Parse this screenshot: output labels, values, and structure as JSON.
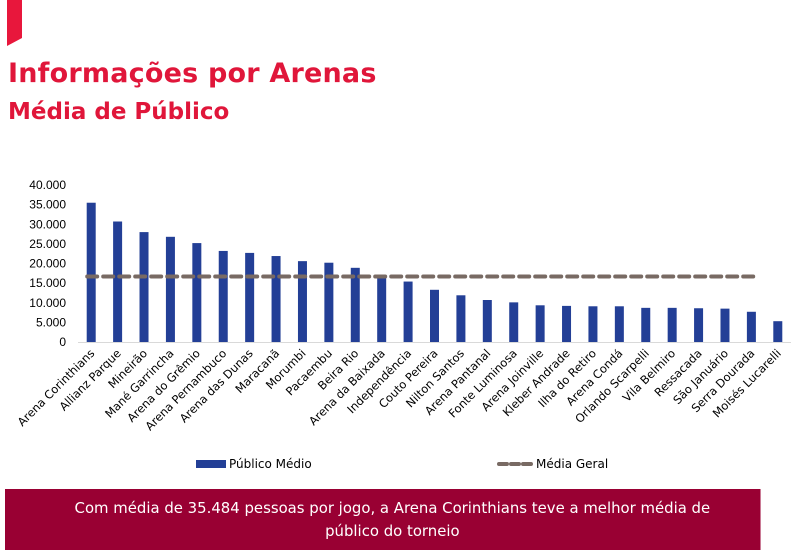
{
  "header": {
    "title": "Informações por Arenas",
    "subtitle": "Média de Público"
  },
  "colors": {
    "accent": "#e8173c",
    "title": "#e0163a",
    "bar": "#233f96",
    "mean_line": "#786a63",
    "banner": "#990033"
  },
  "chart_data": {
    "type": "bar",
    "title": "",
    "xlabel": "",
    "ylabel": "",
    "ylim": [
      0,
      40000
    ],
    "yticks": [
      0,
      5000,
      10000,
      15000,
      20000,
      25000,
      30000,
      35000,
      40000
    ],
    "ytick_labels": [
      "0",
      "5.000",
      "10.000",
      "15.000",
      "20.000",
      "25.000",
      "30.000",
      "35.000",
      "40.000"
    ],
    "grid": false,
    "legend_position": "bottom",
    "categories": [
      "Arena Corinthians",
      "Allianz Parque",
      "Mineirão",
      "Mané Garrincha",
      "Arena do Grêmio",
      "Arena Pernambuco",
      "Arena das Dunas",
      "Maracanã",
      "Morumbi",
      "Pacaembu",
      "Beira Rio",
      "Arena da Baixada",
      "Independência",
      "Couto Pereira",
      "Nilton Santos",
      "Arena Pantanal",
      "Fonte Luminosa",
      "Arena Joinville",
      "Kleber Andrade",
      "Ilha do Retiro",
      "Arena Condá",
      "Orlando Scarpelli",
      "Vila Belmiro",
      "Ressacada",
      "São Januário",
      "Serra Dourada",
      "Moisés Lucarelli"
    ],
    "series": [
      {
        "name": "Público Médio",
        "type": "bar",
        "values": [
          35484,
          30700,
          28000,
          26800,
          25200,
          23200,
          22700,
          21900,
          20600,
          20200,
          18900,
          16600,
          15400,
          13300,
          11900,
          10700,
          10100,
          9350,
          9200,
          9100,
          9100,
          8700,
          8700,
          8600,
          8500,
          7700,
          5300
        ]
      },
      {
        "name": "Média Geral",
        "type": "line",
        "style": "dashed",
        "value": 16700
      }
    ]
  },
  "legend": {
    "items": [
      {
        "label": "Público Médio"
      },
      {
        "label": "Média Geral"
      }
    ]
  },
  "banner": {
    "text": "Com média de 35.484 pessoas por jogo, a Arena Corinthians teve a melhor média de público do torneio"
  }
}
